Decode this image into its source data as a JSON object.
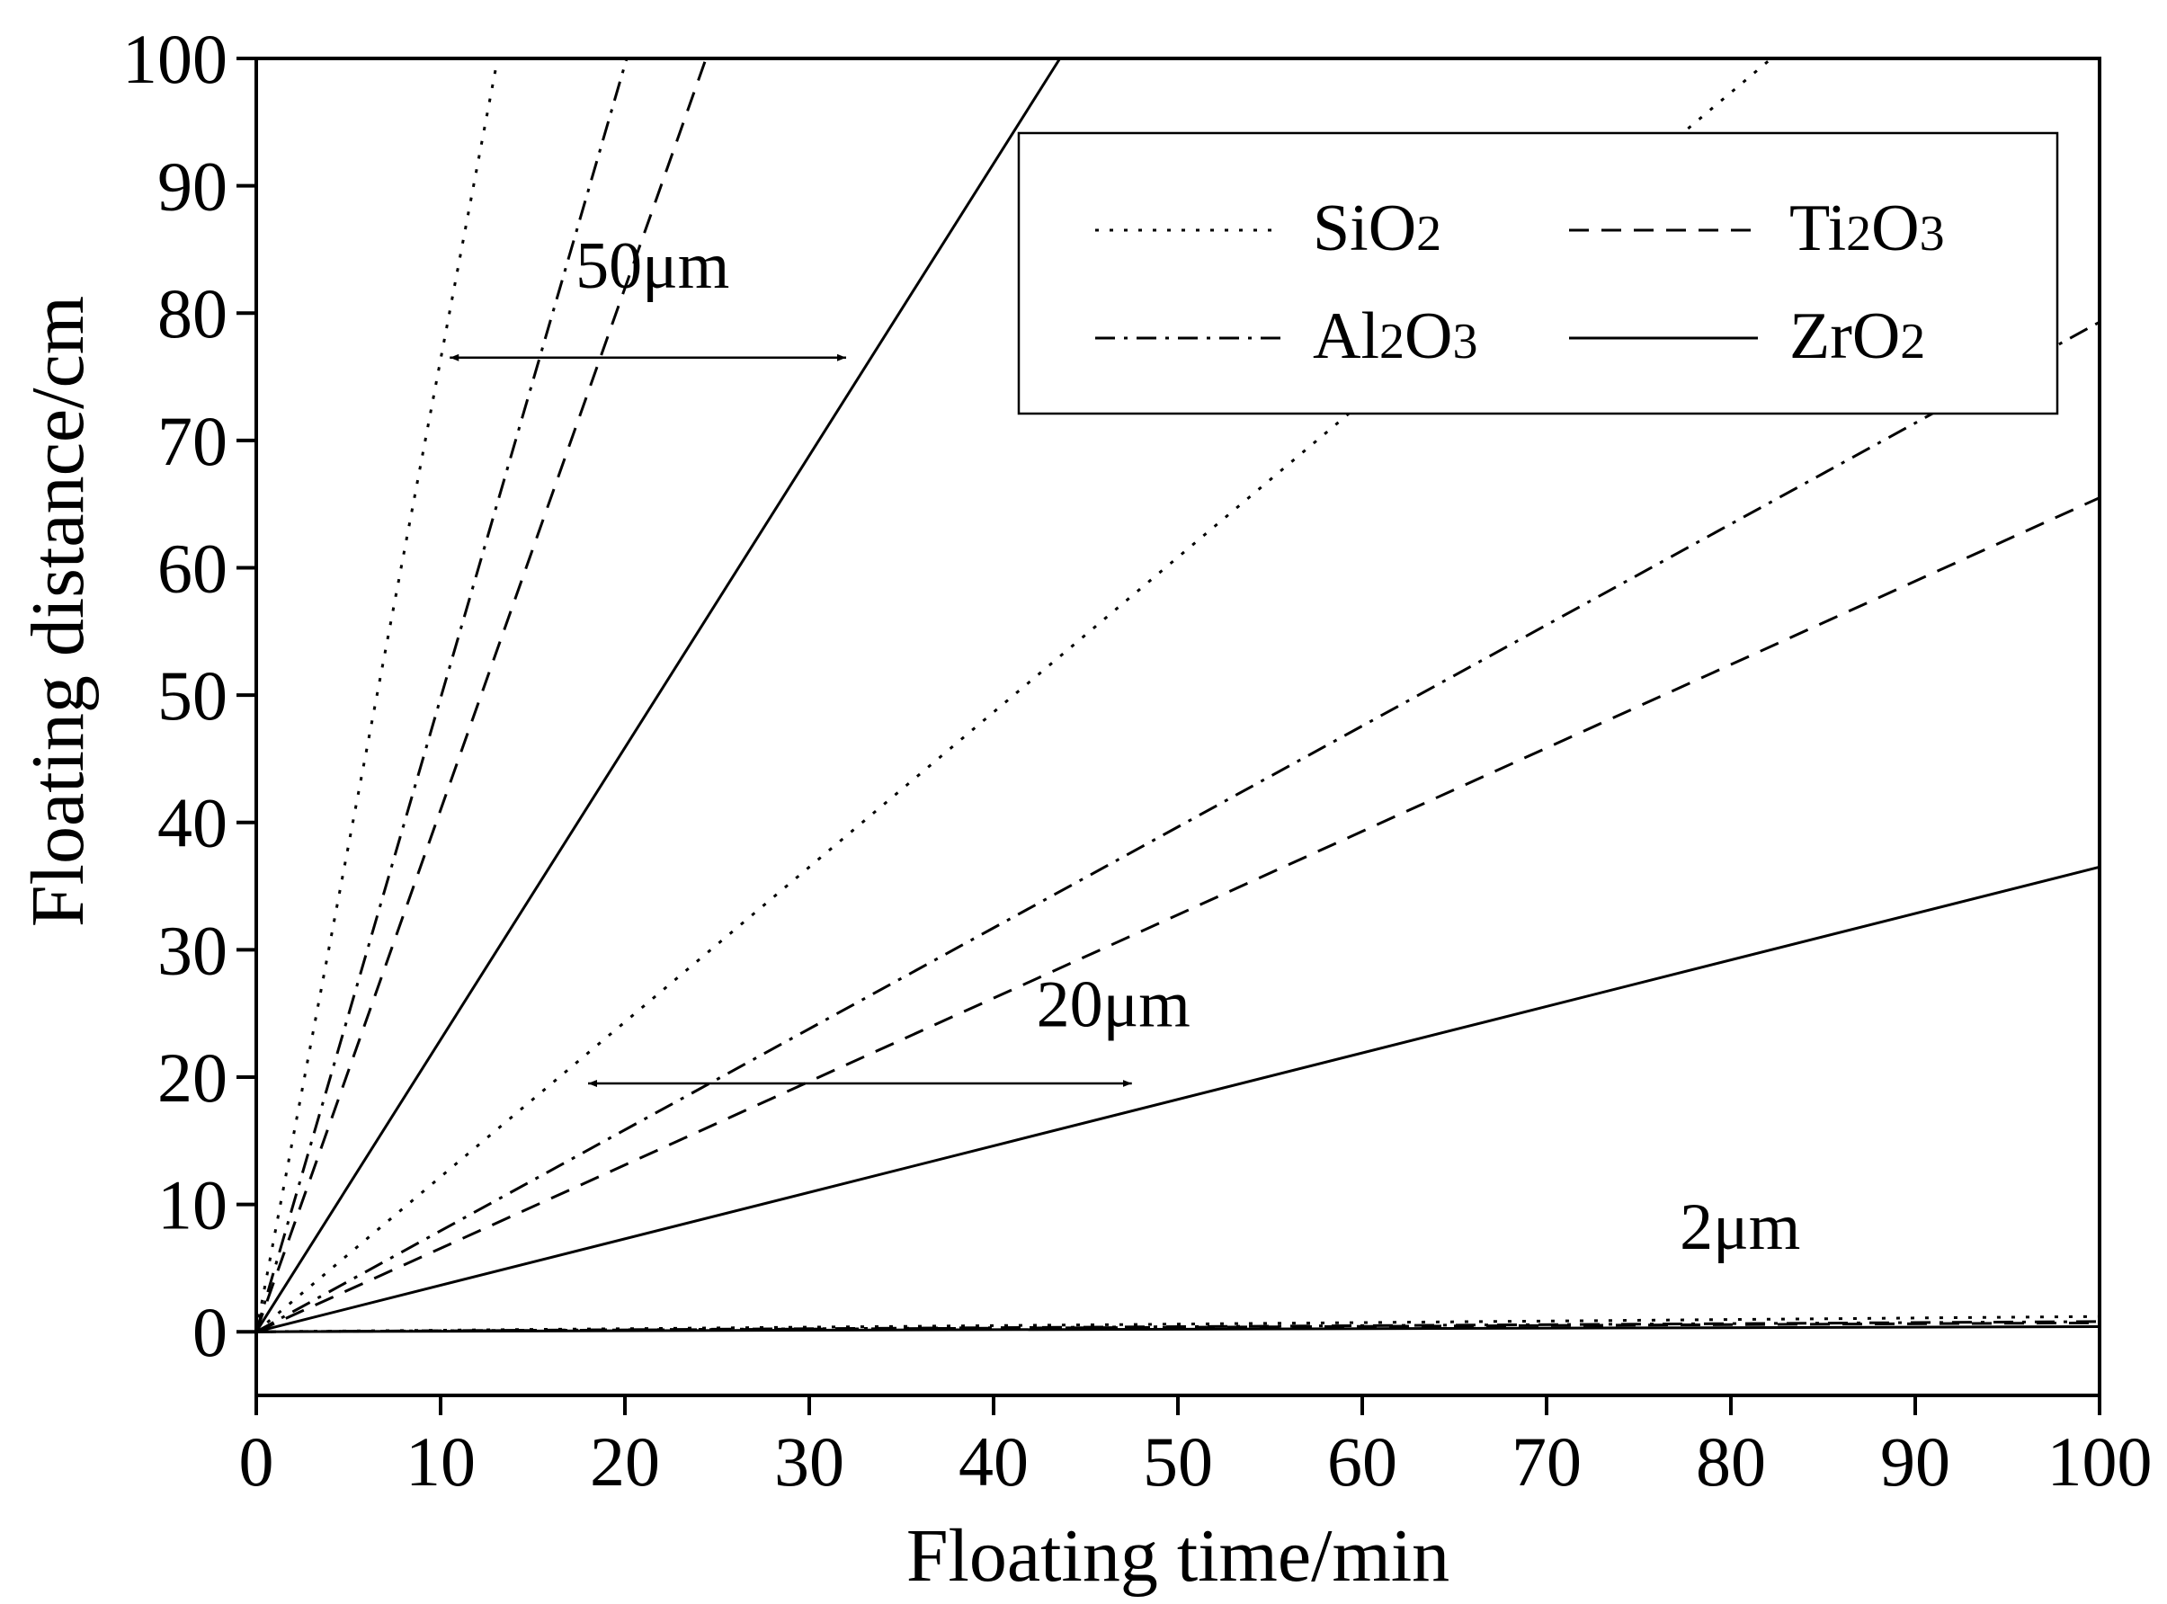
{
  "chart_data": {
    "type": "line",
    "title": "",
    "xlabel": "Floating time/min",
    "ylabel": "Floating distance/cm",
    "xlim": [
      0,
      100
    ],
    "ylim": [
      -5,
      100
    ],
    "x_ticks": [
      "0",
      "10",
      "20",
      "30",
      "40",
      "50",
      "60",
      "70",
      "80",
      "90",
      "100"
    ],
    "y_ticks": [
      "0",
      "10",
      "20",
      "30",
      "40",
      "50",
      "60",
      "70",
      "80",
      "90",
      "100"
    ],
    "grid": false,
    "legend_position": "top-right",
    "legend": [
      {
        "name": "SiO",
        "sub": "2",
        "tail": "",
        "style": "dotted"
      },
      {
        "name": "Ti",
        "sub": "2",
        "tail": "O",
        "sub2": "3",
        "style": "dashed"
      },
      {
        "name": "Al",
        "sub": "2",
        "tail": "O",
        "sub2": "3",
        "style": "dashdot"
      },
      {
        "name": "ZrO",
        "sub": "2",
        "tail": "",
        "style": "solid"
      }
    ],
    "series": [
      {
        "material": "SiO2",
        "size": "50μm",
        "style": "dotted",
        "x": [
          0,
          13.1
        ],
        "y": [
          0,
          100
        ]
      },
      {
        "material": "Al2O3",
        "size": "50μm",
        "style": "dashdot",
        "x": [
          0,
          20.1
        ],
        "y": [
          0,
          100
        ]
      },
      {
        "material": "Ti2O3",
        "size": "50μm",
        "style": "dashed",
        "x": [
          0,
          24.4
        ],
        "y": [
          0,
          100
        ]
      },
      {
        "material": "ZrO2",
        "size": "50μm",
        "style": "solid",
        "x": [
          0,
          43.6
        ],
        "y": [
          0,
          100
        ]
      },
      {
        "material": "SiO2",
        "size": "20μm",
        "style": "dotted",
        "x": [
          0,
          82.2
        ],
        "y": [
          0,
          100
        ]
      },
      {
        "material": "Al2O3",
        "size": "20μm",
        "style": "dashdot",
        "x": [
          0,
          100
        ],
        "y": [
          0,
          79.3
        ]
      },
      {
        "material": "Ti2O3",
        "size": "20μm",
        "style": "dashed",
        "x": [
          0,
          100
        ],
        "y": [
          0,
          65.5
        ]
      },
      {
        "material": "ZrO2",
        "size": "20μm",
        "style": "solid",
        "x": [
          0,
          100
        ],
        "y": [
          0,
          36.5
        ]
      },
      {
        "material": "SiO2",
        "size": "2μm",
        "style": "dotted",
        "x": [
          0,
          100
        ],
        "y": [
          0,
          1.2
        ]
      },
      {
        "material": "Al2O3",
        "size": "2μm",
        "style": "dashdot",
        "x": [
          0,
          100
        ],
        "y": [
          0,
          0.8
        ]
      },
      {
        "material": "Ti2O3",
        "size": "2μm",
        "style": "dashed",
        "x": [
          0,
          100
        ],
        "y": [
          0,
          0.7
        ]
      },
      {
        "material": "ZrO2",
        "size": "2μm",
        "style": "solid",
        "x": [
          0,
          100
        ],
        "y": [
          0,
          0.4
        ]
      }
    ],
    "annotations": [
      {
        "text": "50μm",
        "x": 21.5,
        "y": 82
      },
      {
        "text": "20μm",
        "x": 46.5,
        "y": 24
      },
      {
        "text": "2μm",
        "x": 80.5,
        "y": 6.5
      }
    ],
    "arrows": [
      {
        "x1": 10.5,
        "x2": 32,
        "y": 76.5
      },
      {
        "x1": 18,
        "x2": 47.5,
        "y": 19.5
      }
    ]
  }
}
